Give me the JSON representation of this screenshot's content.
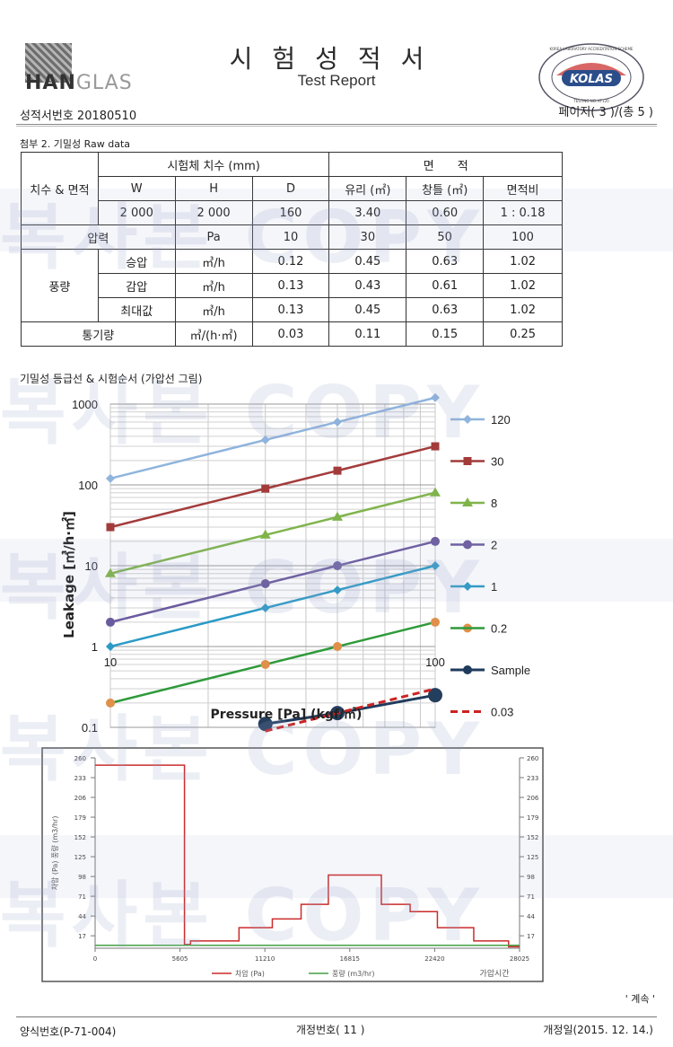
{
  "header": {
    "logo_text": "HANGLAS",
    "logo_strong": "HAN",
    "logo_light": "GLAS",
    "title_ko": "시험성적서",
    "title_en": "Test Report",
    "report_no": "성적서번호 20180510",
    "page_no": "페이지( 3 )/(총 5 )",
    "kolas_text": "KOLAS",
    "kolas_ring": "KOREA LABORATORY ACCREDITATION SCHEME",
    "kolas_sub": "TESTING NO. KT120"
  },
  "section1_title": "첨부 2. 기밀성 Raw data",
  "table": {
    "dim_area_label": "치수 & 면적",
    "dims_header": "시험체 치수 (mm)",
    "area_header": "면　　적",
    "col_w": "W",
    "col_h": "H",
    "col_d": "D",
    "col_glass": "유리 (㎡)",
    "col_frame": "창틀 (㎡)",
    "col_ratio": "면적비",
    "val_w": "2 000",
    "val_h": "2 000",
    "val_d": "160",
    "val_glass": "3.40",
    "val_frame": "0.60",
    "val_ratio": "1 : 0.18",
    "pressure_label": "압력",
    "pressure_unit": "Pa",
    "pressures": [
      "10",
      "30",
      "50",
      "100"
    ],
    "flow_label": "풍량",
    "flow_rows": [
      {
        "label": "승압",
        "unit": "㎥/h",
        "values": [
          "0.12",
          "0.45",
          "0.63",
          "1.02"
        ]
      },
      {
        "label": "감압",
        "unit": "㎥/h",
        "values": [
          "0.13",
          "0.43",
          "0.61",
          "1.02"
        ]
      },
      {
        "label": "최대값",
        "unit": "㎥/h",
        "values": [
          "0.13",
          "0.45",
          "0.63",
          "1.02"
        ]
      }
    ],
    "air_label": "통기량",
    "air_unit": "㎥/(h·㎡)",
    "air_values": [
      "0.03",
      "0.11",
      "0.15",
      "0.25"
    ]
  },
  "section2_title": "기밀성 등급선 & 시험순서 (가압선 그림)",
  "chart_data": [
    {
      "type": "line",
      "ylabel": "Leakage [㎥/h·㎡]",
      "xlabel": "Pressure [Pa] (kgf/㎡)",
      "x_tick_labels": [
        "10",
        "100"
      ],
      "y_tick_labels": [
        "0.1",
        "1",
        "10",
        "100",
        "1000"
      ],
      "xscale": "log",
      "yscale": "log",
      "xlim": [
        10,
        100
      ],
      "ylim": [
        0.1,
        1000
      ],
      "x": [
        10,
        30,
        50,
        100
      ],
      "legend_position": "right",
      "series": [
        {
          "name": "120",
          "color": "#8fb4dd",
          "marker": "diamond",
          "values": [
            120,
            360,
            600,
            1200
          ]
        },
        {
          "name": "30",
          "color": "#a33b3b",
          "marker": "square",
          "values": [
            30,
            90,
            150,
            300
          ]
        },
        {
          "name": "8",
          "color": "#7fb44b",
          "marker": "triangle",
          "values": [
            8,
            24,
            40,
            80
          ]
        },
        {
          "name": "2",
          "color": "#6a5a9e",
          "marker": "circle",
          "values": [
            2,
            6,
            10,
            20
          ]
        },
        {
          "name": "1",
          "color": "#2a9ac6",
          "marker": "diamond",
          "values": [
            1,
            3,
            5,
            10
          ]
        },
        {
          "name": "0.2",
          "color": "#2f9a3a",
          "marker": "circle-orange",
          "values": [
            0.2,
            0.6,
            1.0,
            2.0
          ]
        },
        {
          "name": "Sample",
          "color": "#1f3b5c",
          "marker": "big-circle",
          "values": [
            0.11,
            0.15,
            0.25
          ],
          "x": [
            30,
            50,
            100
          ]
        },
        {
          "name": "0.03",
          "color": "#cc2222",
          "marker": "none",
          "dashed": true,
          "values": [
            0.09,
            0.15,
            0.3
          ],
          "x": [
            30,
            50,
            100
          ]
        }
      ]
    },
    {
      "type": "line",
      "x_tick_labels": [
        "0",
        "5605",
        "11210",
        "16815",
        "22420",
        "28025"
      ],
      "y_tick_labels": [
        "17",
        "44",
        "71",
        "98",
        "125",
        "152",
        "179",
        "206",
        "233",
        "260"
      ],
      "ylabel": "차압 (Pa) 풍량 (m3/hr)",
      "xlim": [
        0,
        28025
      ],
      "ylim": [
        0,
        260
      ],
      "legend": [
        "차압 (Pa)",
        "풍량 (m3/hr)"
      ],
      "x_caption": "가압시간",
      "series": [
        {
          "name": "차압 (Pa)",
          "color": "#cc2b2b",
          "steps": [
            [
              0,
              250
            ],
            [
              5900,
              250
            ],
            [
              5900,
              5
            ],
            [
              6300,
              5
            ],
            [
              6300,
              10
            ],
            [
              9500,
              10
            ],
            [
              9500,
              28
            ],
            [
              11700,
              28
            ],
            [
              11700,
              40
            ],
            [
              13600,
              40
            ],
            [
              13600,
              60
            ],
            [
              15400,
              60
            ],
            [
              15400,
              100
            ],
            [
              18900,
              100
            ],
            [
              18900,
              60
            ],
            [
              20800,
              60
            ],
            [
              20800,
              50
            ],
            [
              22600,
              50
            ],
            [
              22600,
              28
            ],
            [
              25000,
              28
            ],
            [
              25000,
              10
            ],
            [
              27300,
              10
            ],
            [
              27300,
              2
            ],
            [
              28025,
              2
            ]
          ]
        },
        {
          "name": "풍량 (m3/hr)",
          "color": "#44a044",
          "steps": [
            [
              0,
              4
            ],
            [
              28025,
              4
            ]
          ]
        }
      ]
    }
  ],
  "footer": {
    "continued": "' 계속 '",
    "form_no": "양식번호(P-71-004)",
    "rev_no": "개정번호( 11 )",
    "rev_date": "개정일(2015. 12. 14.)"
  },
  "watermark": "복사본 COPY"
}
